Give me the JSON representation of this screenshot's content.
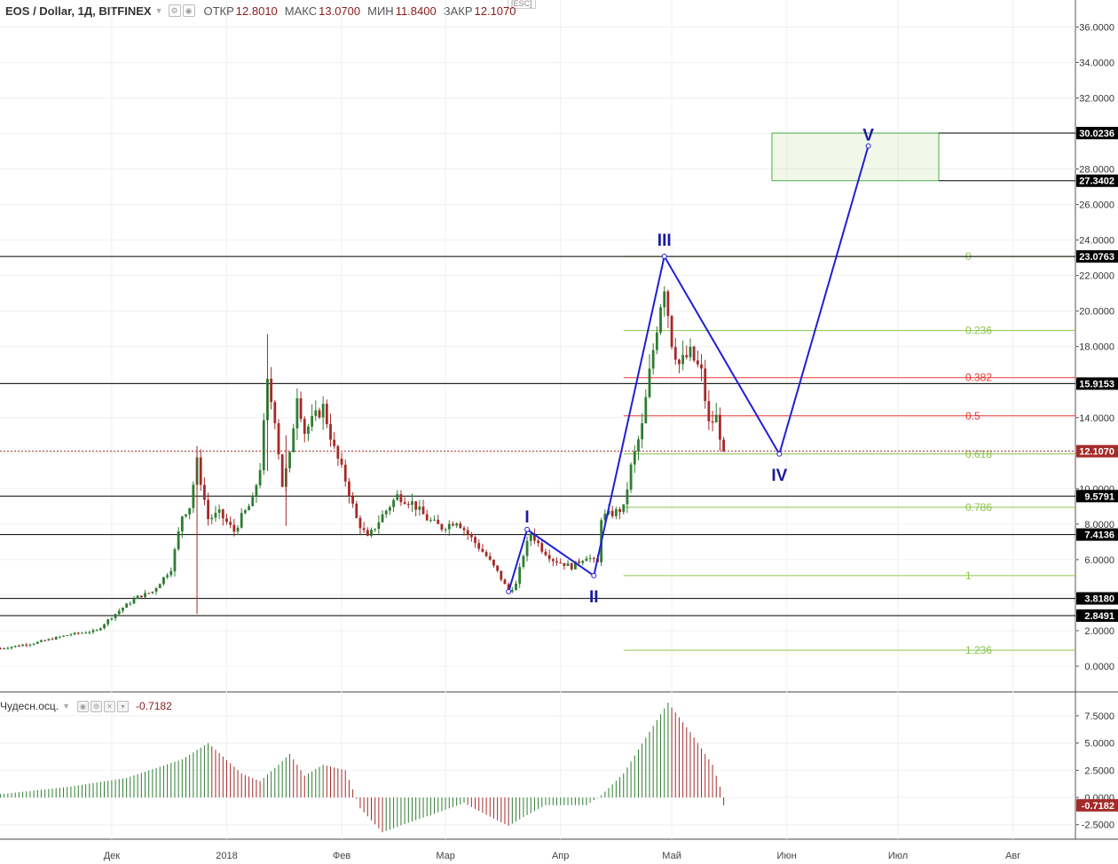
{
  "header": {
    "symbol": "EOS / Dollar, 1Д, BITFINEX",
    "open_label": "ОТКР",
    "open": "12.8010",
    "high_label": "МАКС",
    "high": "13.0700",
    "low_label": "МИН",
    "low": "11.8400",
    "close_label": "ЗАКР",
    "close": "12.1070",
    "esc": "[ESC]"
  },
  "oscillator": {
    "name": "Чудесн.осц.",
    "value": "-0.7182"
  },
  "colors": {
    "up": "#2e7d32",
    "down": "#a52a2a",
    "wave": "#1f1fd6",
    "fib_green": "#8bc34a",
    "fib_red": "#e53935",
    "level": "#000000"
  },
  "chart_data": [
    {
      "type": "candlestick",
      "title": "EOS / Dollar, 1Д, BITFINEX",
      "ylim": [
        -1.5,
        37
      ],
      "y_ticks": [
        "36.0000",
        "34.0000",
        "32.0000",
        "30.0000",
        "28.0000",
        "26.0000",
        "24.0000",
        "22.0000",
        "20.0000",
        "18.0000",
        "16.0000",
        "14.0000",
        "12.0000",
        "10.0000",
        "8.0000",
        "6.0000",
        "4.0000",
        "2.0000",
        "0.0000"
      ],
      "x_ticks": [
        {
          "label": "Дек",
          "date": "2017-12-01"
        },
        {
          "label": "2018",
          "date": "2018-01-01"
        },
        {
          "label": "Фев",
          "date": "2018-02-01"
        },
        {
          "label": "Мар",
          "date": "2018-03-01"
        },
        {
          "label": "Апр",
          "date": "2018-04-01"
        },
        {
          "label": "Май",
          "date": "2018-05-01"
        },
        {
          "label": "Июн",
          "date": "2018-06-01"
        },
        {
          "label": "Июл",
          "date": "2018-07-01"
        },
        {
          "label": "Авг",
          "date": "2018-08-01"
        }
      ],
      "price_path": [
        [
          "2017-11-01",
          1.0
        ],
        [
          "2017-11-10",
          1.3
        ],
        [
          "2017-11-20",
          1.8
        ],
        [
          "2017-11-27",
          2.0
        ],
        [
          "2017-11-30",
          2.6
        ],
        [
          "2017-12-04",
          3.3
        ],
        [
          "2017-12-08",
          3.9
        ],
        [
          "2017-12-12",
          4.2
        ],
        [
          "2017-12-17",
          5.5
        ],
        [
          "2017-12-20",
          8.5
        ],
        [
          "2017-12-22",
          9.0
        ],
        [
          "2017-12-24",
          11.5
        ],
        [
          "2017-12-27",
          8.3
        ],
        [
          "2017-12-30",
          8.6
        ],
        [
          "2018-01-03",
          7.6
        ],
        [
          "2018-01-05",
          8.4
        ],
        [
          "2018-01-08",
          9.3
        ],
        [
          "2018-01-10",
          11.2
        ],
        [
          "2018-01-12",
          15.9
        ],
        [
          "2018-01-14",
          14.0
        ],
        [
          "2018-01-16",
          10.2
        ],
        [
          "2018-01-18",
          11.8
        ],
        [
          "2018-01-20",
          15.4
        ],
        [
          "2018-01-22",
          13.2
        ],
        [
          "2018-01-24",
          13.8
        ],
        [
          "2018-01-27",
          14.6
        ],
        [
          "2018-01-30",
          12.2
        ],
        [
          "2018-02-02",
          10.5
        ],
        [
          "2018-02-05",
          8.3
        ],
        [
          "2018-02-08",
          7.2
        ],
        [
          "2018-02-12",
          8.5
        ],
        [
          "2018-02-16",
          9.6
        ],
        [
          "2018-02-20",
          9.2
        ],
        [
          "2018-02-24",
          8.3
        ],
        [
          "2018-02-28",
          7.8
        ],
        [
          "2018-03-04",
          8.2
        ],
        [
          "2018-03-08",
          7.2
        ],
        [
          "2018-03-12",
          6.2
        ],
        [
          "2018-03-15",
          5.3
        ],
        [
          "2018-03-18",
          4.2
        ],
        [
          "2018-03-20",
          4.6
        ],
        [
          "2018-03-22",
          6.3
        ],
        [
          "2018-03-24",
          7.5
        ],
        [
          "2018-03-27",
          6.6
        ],
        [
          "2018-03-30",
          6.0
        ],
        [
          "2018-04-04",
          5.6
        ],
        [
          "2018-04-08",
          6.2
        ],
        [
          "2018-04-11",
          5.8
        ],
        [
          "2018-04-12",
          8.4
        ],
        [
          "2018-04-15",
          8.6
        ],
        [
          "2018-04-18",
          8.9
        ],
        [
          "2018-04-20",
          11.2
        ],
        [
          "2018-04-23",
          13.5
        ],
        [
          "2018-04-25",
          16.5
        ],
        [
          "2018-04-28",
          20.5
        ],
        [
          "2018-04-29",
          21.5
        ],
        [
          "2018-05-01",
          18.3
        ],
        [
          "2018-05-03",
          17.0
        ],
        [
          "2018-05-06",
          17.6
        ],
        [
          "2018-05-09",
          16.5
        ],
        [
          "2018-05-11",
          13.6
        ],
        [
          "2018-05-13",
          14.0
        ],
        [
          "2018-05-15",
          12.1
        ]
      ],
      "horizontal_levels": [
        "23.0763",
        "15.9153",
        "12.1070",
        "9.5791",
        "7.4136",
        "3.8180",
        "2.8491"
      ],
      "fibonacci": [
        {
          "label": "0",
          "value": 23.0763
        },
        {
          "label": "0.236",
          "value": 18.9
        },
        {
          "label": "0.382",
          "value": 16.25
        },
        {
          "label": "0.5",
          "value": 14.1
        },
        {
          "label": "0.618",
          "value": 11.95
        },
        {
          "label": "0.786",
          "value": 8.95
        },
        {
          "label": "1",
          "value": 5.1
        },
        {
          "label": "1.236",
          "value": 0.9
        }
      ],
      "target_box": {
        "top": "30.0236",
        "bottom": "27.3402",
        "date_from": "2018-05-28",
        "date_to": "2018-07-12"
      },
      "waves": [
        {
          "label": "",
          "date": "2018-03-18",
          "value": 4.2
        },
        {
          "label": "I",
          "date": "2018-03-23",
          "value": 7.7
        },
        {
          "label": "II",
          "date": "2018-04-10",
          "value": 5.1
        },
        {
          "label": "III",
          "date": "2018-04-29",
          "value": 23.08
        },
        {
          "label": "IV",
          "date": "2018-05-30",
          "value": 11.95
        },
        {
          "label": "V",
          "date": "2018-06-23",
          "value": 29.3
        }
      ],
      "current_price": "12.1070"
    },
    {
      "type": "histogram",
      "title": "Чудесн.осц.",
      "ylim": [
        -3.5,
        9.5
      ],
      "y_ticks": [
        "7.5000",
        "5.0000",
        "2.5000",
        "0.0000",
        "-2.5000"
      ],
      "value_path": [
        [
          "2017-11-01",
          0.3
        ],
        [
          "2017-11-20",
          1.0
        ],
        [
          "2017-12-05",
          1.8
        ],
        [
          "2017-12-20",
          3.5
        ],
        [
          "2017-12-27",
          5.0
        ],
        [
          "2018-01-05",
          2.2
        ],
        [
          "2018-01-10",
          1.5
        ],
        [
          "2018-01-15",
          3.0
        ],
        [
          "2018-01-18",
          4.0
        ],
        [
          "2018-01-22",
          2.0
        ],
        [
          "2018-01-27",
          3.0
        ],
        [
          "2018-02-02",
          2.5
        ],
        [
          "2018-02-06",
          -1.0
        ],
        [
          "2018-02-12",
          -3.2
        ],
        [
          "2018-02-20",
          -2.2
        ],
        [
          "2018-02-26",
          -1.5
        ],
        [
          "2018-03-06",
          -0.5
        ],
        [
          "2018-03-12",
          -1.6
        ],
        [
          "2018-03-18",
          -2.6
        ],
        [
          "2018-03-22",
          -1.8
        ],
        [
          "2018-03-28",
          -0.7
        ],
        [
          "2018-04-08",
          -0.7
        ],
        [
          "2018-04-12",
          0.2
        ],
        [
          "2018-04-18",
          2.2
        ],
        [
          "2018-04-24",
          5.5
        ],
        [
          "2018-04-30",
          8.7
        ],
        [
          "2018-05-06",
          6.0
        ],
        [
          "2018-05-12",
          3.0
        ],
        [
          "2018-05-14",
          1.0
        ],
        [
          "2018-05-15",
          -0.72
        ]
      ],
      "current_value": "-0.7182"
    }
  ]
}
